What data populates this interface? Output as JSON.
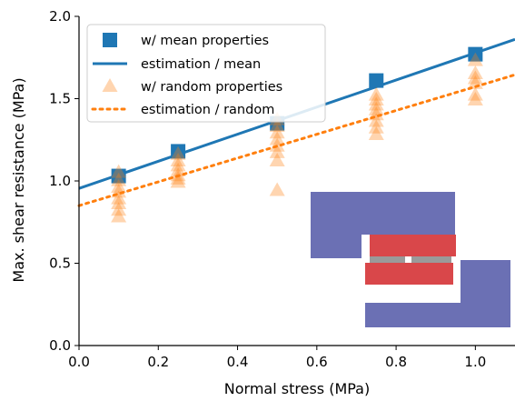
{
  "chart_data": {
    "type": "scatter",
    "xlabel": "Normal stress (MPa)",
    "ylabel": "Max. shear resistance (MPa)",
    "xlim": [
      0.0,
      1.1
    ],
    "ylim": [
      0.0,
      2.0
    ],
    "xticks": [
      "0.0",
      "0.2",
      "0.4",
      "0.6",
      "0.8",
      "1.0"
    ],
    "yticks": [
      "0.0",
      "0.5",
      "1.0",
      "1.5",
      "2.0"
    ],
    "grid": false,
    "legend_position": "top-left",
    "series": [
      {
        "name": "w/ mean properties",
        "kind": "markers",
        "marker": "square",
        "color": "#1f77b4",
        "x": [
          0.1,
          0.25,
          0.5,
          0.75,
          1.0
        ],
        "y": [
          1.03,
          1.18,
          1.35,
          1.61,
          1.77
        ]
      },
      {
        "name": "estimation / mean",
        "kind": "line",
        "style": "solid",
        "color": "#1f77b4",
        "x": [
          0.0,
          1.1
        ],
        "y": [
          0.955,
          1.86
        ]
      },
      {
        "name": "w/ random properties",
        "kind": "markers",
        "marker": "triangle",
        "color": "#ff7f0e",
        "x": [
          0.1,
          0.1,
          0.1,
          0.1,
          0.1,
          0.1,
          0.1,
          0.1,
          0.25,
          0.25,
          0.25,
          0.25,
          0.25,
          0.25,
          0.25,
          0.5,
          0.5,
          0.5,
          0.5,
          0.5,
          0.5,
          0.5,
          0.5,
          0.75,
          0.75,
          0.75,
          0.75,
          0.75,
          0.75,
          0.75,
          0.75,
          1.0,
          1.0,
          1.0,
          1.0,
          1.0,
          1.0
        ],
        "y": [
          0.78,
          0.82,
          0.86,
          0.89,
          0.93,
          0.96,
          1.0,
          1.05,
          0.99,
          1.01,
          1.03,
          1.06,
          1.09,
          1.12,
          1.16,
          0.94,
          1.12,
          1.17,
          1.21,
          1.25,
          1.29,
          1.33,
          1.37,
          1.28,
          1.32,
          1.36,
          1.4,
          1.43,
          1.46,
          1.49,
          1.52,
          1.49,
          1.52,
          1.59,
          1.62,
          1.65,
          1.73
        ]
      },
      {
        "name": "estimation / random",
        "kind": "line",
        "style": "dotted",
        "color": "#ff7f0e",
        "x": [
          0.0,
          1.1
        ],
        "y": [
          0.85,
          1.645
        ]
      }
    ],
    "inset": {
      "description_colors": {
        "block": "#6b70b4",
        "sample": "#d9474a",
        "gap": "#9a9a9a"
      }
    }
  }
}
